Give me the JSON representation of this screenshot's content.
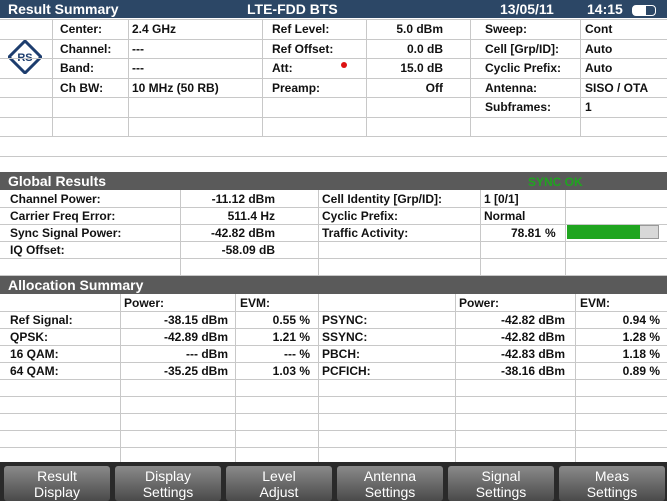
{
  "header": {
    "title": "Result Summary",
    "mode": "LTE-FDD BTS",
    "date": "13/05/11",
    "time": "14:15"
  },
  "settings": {
    "left": [
      [
        "Center:",
        "2.4 GHz"
      ],
      [
        "Channel:",
        "---"
      ],
      [
        "Band:",
        "---"
      ],
      [
        "Ch BW:",
        "10 MHz (50 RB)"
      ]
    ],
    "middle": [
      [
        "Ref Level:",
        "5.0 dBm"
      ],
      [
        "Ref Offset:",
        "0.0 dB"
      ],
      [
        "Att:",
        "15.0 dB"
      ],
      [
        "Preamp:",
        "Off"
      ]
    ],
    "right": [
      [
        "Sweep:",
        "Cont"
      ],
      [
        "Cell [Grp/ID]:",
        "Auto"
      ],
      [
        "Cyclic Prefix:",
        "Auto"
      ],
      [
        "Antenna:",
        "SISO / OTA"
      ],
      [
        "Subframes:",
        "1"
      ]
    ]
  },
  "global": {
    "title": "Global Results",
    "status": "SYNC OK",
    "left": [
      [
        "Channel Power:",
        "-11.12 dBm"
      ],
      [
        "Carrier Freq Error:",
        "511.4 Hz"
      ],
      [
        "Sync Signal Power:",
        "-42.82 dBm"
      ],
      [
        "IQ Offset:",
        "-58.09 dB"
      ]
    ],
    "right": [
      [
        "Cell Identity [Grp/ID]:",
        "1  [0/1]"
      ],
      [
        "Cyclic Prefix:",
        "Normal"
      ]
    ],
    "traffic": {
      "label": "Traffic Activity:",
      "value": 78.81,
      "unit": "%"
    }
  },
  "allocation": {
    "title": "Allocation Summary",
    "columns": [
      "Power:",
      "EVM:"
    ],
    "left": [
      [
        "Ref Signal:",
        "-38.15 dBm",
        "0.55 %"
      ],
      [
        "QPSK:",
        "-42.89 dBm",
        "1.21 %"
      ],
      [
        "16 QAM:",
        "--- dBm",
        "--- %"
      ],
      [
        "64 QAM:",
        "-35.25 dBm",
        "1.03 %"
      ]
    ],
    "right": [
      [
        "PSYNC:",
        "-42.82 dBm",
        "0.94 %"
      ],
      [
        "SSYNC:",
        "-42.82 dBm",
        "1.28 %"
      ],
      [
        "PBCH:",
        "-42.83 dBm",
        "1.18 %"
      ],
      [
        "PCFICH:",
        "-38.16 dBm",
        "0.89 %"
      ]
    ]
  },
  "softkeys": [
    [
      "Result",
      "Display"
    ],
    [
      "Display",
      "Settings"
    ],
    [
      "Level",
      "Adjust"
    ],
    [
      "Antenna",
      "Settings"
    ],
    [
      "Signal",
      "Settings"
    ],
    [
      "Meas",
      "Settings"
    ]
  ]
}
